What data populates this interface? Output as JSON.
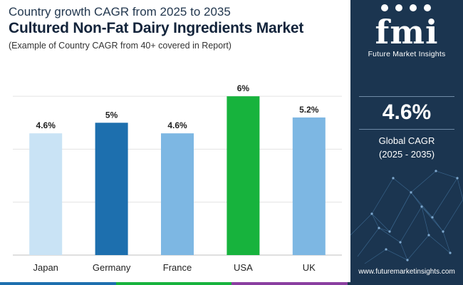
{
  "header": {
    "subtitle": "Country growth CAGR from 2025 to 2035",
    "title": "Cultured Non-Fat Dairy Ingredients Market",
    "note": "(Example of Country CAGR from 40+ covered in Report)"
  },
  "chart_data": {
    "type": "bar",
    "categories": [
      "Japan",
      "Germany",
      "France",
      "USA",
      "UK"
    ],
    "values": [
      4.6,
      5,
      4.6,
      6,
      5.2
    ],
    "data_labels": [
      "4.6%",
      "5%",
      "4.6%",
      "6%",
      "5.2%"
    ],
    "bar_colors": [
      "#c9e3f5",
      "#1d6fae",
      "#7db7e3",
      "#17b33d",
      "#7db7e3"
    ],
    "ylim": [
      0,
      7
    ],
    "grid": true,
    "xlabel": "",
    "ylabel": ""
  },
  "sidebar": {
    "logo_mark": "fmi",
    "logo_name": "Future Market Insights",
    "global_value": "4.6%",
    "global_label": "Global CAGR",
    "global_period": "(2025 - 2035)",
    "website": "www.futuremarketinsights.com"
  },
  "colors": {
    "panel": "#1b3550",
    "strip": [
      "#1d6fae",
      "#17b33d",
      "#8a3fa0",
      "#1b3550"
    ]
  }
}
